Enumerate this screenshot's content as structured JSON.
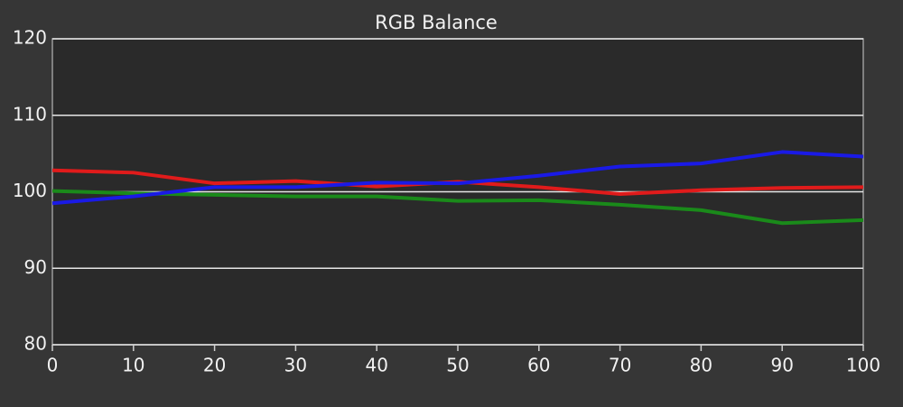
{
  "chart_data": {
    "type": "line",
    "title": "RGB Balance",
    "x": [
      0,
      10,
      20,
      30,
      40,
      50,
      60,
      70,
      80,
      90,
      100
    ],
    "series": [
      {
        "color": "#e01b1b",
        "values": [
          102.8,
          102.5,
          101.1,
          101.4,
          100.7,
          101.3,
          100.6,
          99.7,
          100.2,
          100.5,
          100.6
        ]
      },
      {
        "color": "#1a8a1a",
        "values": [
          100.1,
          99.8,
          99.6,
          99.4,
          99.4,
          98.8,
          98.9,
          98.3,
          97.6,
          95.9,
          96.3
        ]
      },
      {
        "color": "#1a1ae6",
        "values": [
          98.5,
          99.4,
          100.6,
          100.6,
          101.2,
          101.1,
          102.1,
          103.3,
          103.7,
          105.2,
          104.6
        ]
      }
    ],
    "xlim": [
      0,
      100
    ],
    "xticks": [
      0,
      10,
      20,
      30,
      40,
      50,
      60,
      70,
      80,
      90,
      100
    ],
    "ylim": [
      80,
      120
    ],
    "yticks": [
      80,
      90,
      100,
      110,
      120
    ],
    "grid": true
  }
}
